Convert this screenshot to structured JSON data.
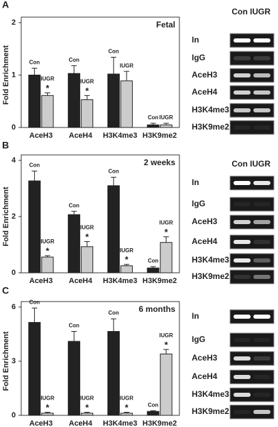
{
  "chart_data": [
    {
      "type": "bar",
      "panel": "A",
      "title": "Fetal",
      "y_label": "Fold Enrichment",
      "categories": [
        "AceH3",
        "AceH4",
        "H3K4me3",
        "H3K9me2"
      ],
      "series": [
        {
          "name": "Con",
          "color": "#222222",
          "values": [
            1.0,
            1.03,
            1.02,
            0.05
          ],
          "errors": [
            0.13,
            0.15,
            0.32,
            0.03
          ]
        },
        {
          "name": "IUGR",
          "color": "#cccccc",
          "values": [
            0.61,
            0.53,
            0.89,
            0.05
          ],
          "errors": [
            0.05,
            0.08,
            0.18,
            0.03
          ],
          "annotations": [
            "*",
            "*",
            null,
            null
          ]
        }
      ],
      "ylim": [
        0,
        2
      ],
      "yticks": [
        0,
        1,
        2
      ],
      "gel_columns": [
        "Con",
        "IUGR"
      ],
      "gel_rows": [
        "In",
        "IgG",
        "AceH3",
        "AceH4",
        "H3K4me3",
        "H3K9me2"
      ]
    },
    {
      "type": "bar",
      "panel": "B",
      "title": "2 weeks",
      "y_label": "Fold Enrichment",
      "categories": [
        "AceH3",
        "AceH4",
        "H3K4me3",
        "H3K9me2"
      ],
      "series": [
        {
          "name": "Con",
          "color": "#222222",
          "values": [
            3.27,
            2.07,
            3.1,
            0.17
          ],
          "errors": [
            0.35,
            0.12,
            0.3,
            0.05
          ]
        },
        {
          "name": "IUGR",
          "color": "#cccccc",
          "values": [
            0.56,
            0.93,
            0.25,
            1.08
          ],
          "errors": [
            0.05,
            0.18,
            0.05,
            0.2
          ],
          "annotations": [
            "*",
            "*",
            "*",
            "*"
          ]
        }
      ],
      "ylim": [
        0,
        4
      ],
      "yticks": [
        0,
        2,
        4
      ],
      "gel_columns": [
        "Con",
        "IUGR"
      ],
      "gel_rows": [
        "In",
        "IgG",
        "AceH3",
        "AceH4",
        "H3K4me3",
        "H3K9me2"
      ]
    },
    {
      "type": "bar",
      "panel": "C",
      "title": "6 months",
      "y_label": "Fold Enrichment",
      "categories": [
        "AceH3",
        "AceH4",
        "H3K4me3",
        "H3K9me2"
      ],
      "series": [
        {
          "name": "Con",
          "color": "#222222",
          "values": [
            5.15,
            4.1,
            4.65,
            0.22
          ],
          "errors": [
            0.8,
            0.55,
            0.7,
            0.04
          ]
        },
        {
          "name": "IUGR",
          "color": "#cccccc",
          "values": [
            0.12,
            0.12,
            0.12,
            3.4
          ],
          "errors": [
            0.05,
            0.05,
            0.05,
            0.25
          ],
          "annotations": [
            "*",
            "*",
            "*",
            "*"
          ]
        }
      ],
      "ylim": [
        0,
        6
      ],
      "yticks": [
        0,
        3,
        6
      ],
      "gel_rows": [
        "In",
        "IgG",
        "AceH3",
        "AceH4",
        "H3K4me3",
        "H3K9me2"
      ]
    }
  ]
}
